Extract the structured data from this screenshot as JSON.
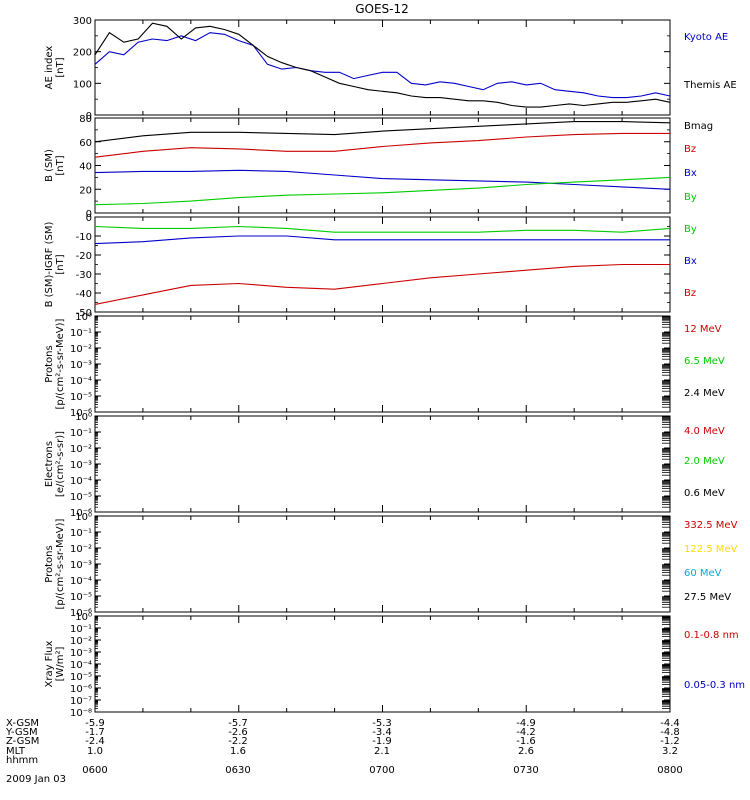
{
  "title": "GOES-12",
  "chart_data": [
    {
      "type": "line",
      "ylabel": [
        "AE index",
        "[nT]"
      ],
      "ylim": [
        0,
        300
      ],
      "yticks": [
        0,
        100,
        200,
        300
      ],
      "ytick_labels": [
        "0",
        "100",
        "200",
        "300"
      ],
      "xlim": [
        0,
        120
      ],
      "x_unit": "minutes after 0600 UT",
      "legend_placement": "right",
      "series": [
        {
          "name": "Kyoto AE",
          "color": "#0000cc",
          "x": [
            0,
            3,
            6,
            9,
            12,
            15,
            18,
            21,
            24,
            27,
            30,
            33,
            36,
            39,
            42,
            45,
            48,
            51,
            54,
            57,
            60,
            63,
            66,
            69,
            72,
            75,
            78,
            81,
            84,
            87,
            90,
            93,
            96,
            99,
            102,
            105,
            108,
            111,
            114,
            117,
            120
          ],
          "values": [
            160,
            200,
            190,
            230,
            240,
            235,
            250,
            235,
            260,
            255,
            235,
            220,
            160,
            145,
            150,
            140,
            135,
            135,
            115,
            125,
            135,
            135,
            100,
            95,
            105,
            100,
            90,
            80,
            100,
            105,
            95,
            100,
            80,
            75,
            70,
            60,
            55,
            55,
            60,
            70,
            60
          ]
        },
        {
          "name": "Themis AE",
          "color": "#000000",
          "x": [
            0,
            3,
            6,
            9,
            12,
            15,
            18,
            21,
            24,
            27,
            30,
            33,
            36,
            39,
            42,
            45,
            48,
            51,
            54,
            57,
            60,
            63,
            66,
            69,
            72,
            75,
            78,
            81,
            84,
            87,
            90,
            93,
            96,
            99,
            102,
            105,
            108,
            111,
            114,
            117,
            120
          ],
          "values": [
            190,
            260,
            230,
            240,
            290,
            280,
            240,
            275,
            280,
            270,
            255,
            220,
            185,
            165,
            150,
            140,
            120,
            100,
            90,
            80,
            75,
            70,
            60,
            55,
            55,
            50,
            45,
            45,
            40,
            30,
            25,
            25,
            30,
            35,
            30,
            35,
            40,
            40,
            45,
            50,
            40
          ]
        }
      ]
    },
    {
      "type": "line",
      "ylabel": [
        "B (SM)",
        "[nT]"
      ],
      "ylim": [
        0,
        80
      ],
      "yticks": [
        0,
        20,
        40,
        60,
        80
      ],
      "ytick_labels": [
        "0",
        "20",
        "40",
        "60",
        "80"
      ],
      "xlim": [
        0,
        120
      ],
      "legend_placement": "right",
      "series": [
        {
          "name": "Bmag",
          "color": "#000000",
          "x": [
            0,
            10,
            20,
            30,
            40,
            50,
            60,
            70,
            80,
            90,
            100,
            110,
            120
          ],
          "values": [
            60,
            65,
            68,
            68,
            67,
            66,
            69,
            71,
            73,
            75,
            77,
            77,
            76
          ]
        },
        {
          "name": "Bz",
          "color": "#cc0000",
          "x": [
            0,
            10,
            20,
            30,
            40,
            50,
            60,
            70,
            80,
            90,
            100,
            110,
            120
          ],
          "values": [
            47,
            52,
            55,
            54,
            52,
            52,
            56,
            59,
            61,
            64,
            66,
            67,
            67
          ]
        },
        {
          "name": "Bx",
          "color": "#0000cc",
          "x": [
            0,
            10,
            20,
            30,
            40,
            50,
            60,
            70,
            80,
            90,
            100,
            110,
            120
          ],
          "values": [
            34,
            35,
            35,
            36,
            35,
            32,
            29,
            28,
            27,
            26,
            24,
            22,
            20
          ]
        },
        {
          "name": "By",
          "color": "#00cc00",
          "x": [
            0,
            10,
            20,
            30,
            40,
            50,
            60,
            70,
            80,
            90,
            100,
            110,
            120
          ],
          "values": [
            7,
            8,
            10,
            13,
            15,
            16,
            17,
            19,
            21,
            24,
            26,
            28,
            30
          ]
        }
      ]
    },
    {
      "type": "line",
      "ylabel": [
        "B (SM)-IGRF (SM)",
        "[nT]"
      ],
      "ylim": [
        -50,
        0
      ],
      "yticks": [
        -50,
        -40,
        -30,
        -20,
        -10,
        0
      ],
      "ytick_labels": [
        "-50",
        "-40",
        "-30",
        "-20",
        "-10",
        "0"
      ],
      "xlim": [
        0,
        120
      ],
      "legend_placement": "right",
      "series": [
        {
          "name": "By",
          "color": "#00cc00",
          "x": [
            0,
            10,
            20,
            30,
            40,
            50,
            60,
            70,
            80,
            90,
            100,
            110,
            120
          ],
          "values": [
            -5,
            -6,
            -6,
            -5,
            -6,
            -8,
            -8,
            -8,
            -8,
            -7,
            -7,
            -8,
            -6
          ]
        },
        {
          "name": "Bx",
          "color": "#0000cc",
          "x": [
            0,
            10,
            20,
            30,
            40,
            50,
            60,
            70,
            80,
            90,
            100,
            110,
            120
          ],
          "values": [
            -14,
            -13,
            -11,
            -10,
            -10,
            -12,
            -12,
            -12,
            -12,
            -12,
            -12,
            -12,
            -12
          ]
        },
        {
          "name": "Bz",
          "color": "#cc0000",
          "x": [
            0,
            10,
            20,
            30,
            40,
            50,
            60,
            70,
            80,
            90,
            100,
            110,
            120
          ],
          "values": [
            -46,
            -41,
            -36,
            -35,
            -37,
            -38,
            -35,
            -32,
            -30,
            -28,
            -26,
            -25,
            -25
          ]
        }
      ]
    },
    {
      "type": "line",
      "ylabel": [
        "Protons",
        "[p/(cm²-s-sr-MeV)]"
      ],
      "yscale": "log",
      "ylim_exp": [
        -6,
        0
      ],
      "ytick_exps": [
        -6,
        -5,
        -4,
        -3,
        -2,
        -1,
        0
      ],
      "ytick_labels": [
        "10⁻⁶",
        "10⁻⁵",
        "10⁻⁴",
        "10⁻³",
        "10⁻²",
        "10⁻¹",
        "10⁰"
      ],
      "xlim": [
        0,
        120
      ],
      "legend_placement": "right",
      "series": [
        {
          "name": "12 MeV",
          "color": "#cc0000"
        },
        {
          "name": "6.5 MeV",
          "color": "#00cc00"
        },
        {
          "name": "2.4 MeV",
          "color": "#000000"
        }
      ]
    },
    {
      "type": "line",
      "ylabel": [
        "Electrons",
        "[e/(cm²-s-sr)]"
      ],
      "yscale": "log",
      "ylim_exp": [
        -6,
        0
      ],
      "ytick_exps": [
        -6,
        -5,
        -4,
        -3,
        -2,
        -1,
        0
      ],
      "ytick_labels": [
        "10⁻⁶",
        "10⁻⁵",
        "10⁻⁴",
        "10⁻³",
        "10⁻²",
        "10⁻¹",
        "10⁰"
      ],
      "xlim": [
        0,
        120
      ],
      "legend_placement": "right",
      "series": [
        {
          "name": "4.0 MeV",
          "color": "#cc0000"
        },
        {
          "name": "2.0 MeV",
          "color": "#00cc00"
        },
        {
          "name": "0.6 MeV",
          "color": "#000000"
        }
      ]
    },
    {
      "type": "line",
      "ylabel": [
        "Protons",
        "[p/(cm²-s-sr-MeV)]"
      ],
      "yscale": "log",
      "ylim_exp": [
        -6,
        0
      ],
      "ytick_exps": [
        -6,
        -5,
        -4,
        -3,
        -2,
        -1,
        0
      ],
      "ytick_labels": [
        "10⁻⁶",
        "10⁻⁵",
        "10⁻⁴",
        "10⁻³",
        "10⁻²",
        "10⁻¹",
        "10⁰"
      ],
      "xlim": [
        0,
        120
      ],
      "legend_placement": "right",
      "series": [
        {
          "name": "332.5 MeV",
          "color": "#cc0000"
        },
        {
          "name": "122.5 MeV",
          "color": "#ffdd00"
        },
        {
          "name": "60 MeV",
          "color": "#00aadd"
        },
        {
          "name": "27.5 MeV",
          "color": "#000000"
        }
      ]
    },
    {
      "type": "line",
      "ylabel": [
        "Xray Flux",
        "[W/m²]"
      ],
      "yscale": "log",
      "ylim_exp": [
        -8,
        0
      ],
      "ytick_exps": [
        -8,
        -7,
        -6,
        -5,
        -4,
        -3,
        -2,
        -1,
        0
      ],
      "ytick_labels": [
        "10⁻⁸",
        "10⁻⁷",
        "10⁻⁶",
        "10⁻⁵",
        "10⁻⁴",
        "10⁻³",
        "10⁻²",
        "10⁻¹",
        "10⁰"
      ],
      "xlim": [
        0,
        120
      ],
      "legend_placement": "right",
      "series": [
        {
          "name": "0.1-0.8 nm",
          "color": "#cc0000"
        },
        {
          "name": "0.05-0.3 nm",
          "color": "#0000cc"
        }
      ]
    }
  ],
  "x_axis": {
    "rows": [
      {
        "label": "X-GSM",
        "values": [
          "-5.9",
          "-5.7",
          "-5.3",
          "-4.9",
          "-4.4"
        ]
      },
      {
        "label": "Y-GSM",
        "values": [
          "-1.7",
          "-2.6",
          "-3.4",
          "-4.2",
          "-4.8"
        ]
      },
      {
        "label": "Z-GSM",
        "values": [
          "-2.4",
          "-2.2",
          "-1.9",
          "-1.6",
          "-1.2"
        ]
      },
      {
        "label": "MLT",
        "values": [
          "1.0",
          "1.6",
          "2.1",
          "2.6",
          "3.2"
        ]
      },
      {
        "label": "hhmm",
        "values": [
          "",
          "",
          "",
          "",
          ""
        ]
      }
    ],
    "time_labels": [
      "0600",
      "0630",
      "0700",
      "0730",
      "0800"
    ],
    "date": "2009 Jan 03"
  }
}
